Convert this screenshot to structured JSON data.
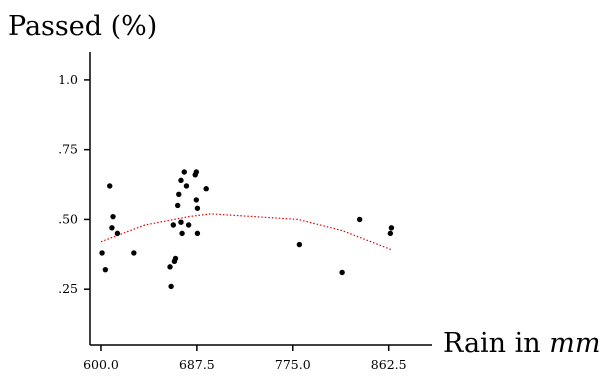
{
  "chart_data": {
    "type": "scatter",
    "ylabel": "Passed (%)",
    "xlabel": "Rain in",
    "xlabel_unit": "mm",
    "xlim": [
      590,
      902
    ],
    "ylim": [
      0.05,
      1.1
    ],
    "x_ticks": [
      {
        "value": 600.0,
        "label": "600.0"
      },
      {
        "value": 687.5,
        "label": "687.5"
      },
      {
        "value": 775.0,
        "label": "775.0"
      },
      {
        "value": 862.5,
        "label": "862.5"
      }
    ],
    "y_ticks": [
      {
        "value": 0.25,
        "label": ".25"
      },
      {
        "value": 0.5,
        "label": ".50"
      },
      {
        "value": 0.75,
        "label": ".75"
      },
      {
        "value": 1.0,
        "label": "1.0"
      }
    ],
    "grid": false,
    "legend": "none",
    "colors": {
      "points": "#000000",
      "trend": "#dd0000",
      "axes": "#000000"
    },
    "points": [
      {
        "x": 601,
        "y": 0.38
      },
      {
        "x": 604,
        "y": 0.32
      },
      {
        "x": 608,
        "y": 0.62
      },
      {
        "x": 610,
        "y": 0.47
      },
      {
        "x": 611,
        "y": 0.51
      },
      {
        "x": 615,
        "y": 0.45
      },
      {
        "x": 630,
        "y": 0.38
      },
      {
        "x": 663,
        "y": 0.33
      },
      {
        "x": 664,
        "y": 0.26
      },
      {
        "x": 666,
        "y": 0.48
      },
      {
        "x": 667,
        "y": 0.35
      },
      {
        "x": 668,
        "y": 0.36
      },
      {
        "x": 670,
        "y": 0.55
      },
      {
        "x": 671,
        "y": 0.59
      },
      {
        "x": 673,
        "y": 0.49
      },
      {
        "x": 673,
        "y": 0.64
      },
      {
        "x": 674,
        "y": 0.45
      },
      {
        "x": 676,
        "y": 0.67
      },
      {
        "x": 678,
        "y": 0.62
      },
      {
        "x": 680,
        "y": 0.48
      },
      {
        "x": 686,
        "y": 0.66
      },
      {
        "x": 687,
        "y": 0.67
      },
      {
        "x": 687,
        "y": 0.57
      },
      {
        "x": 688,
        "y": 0.45
      },
      {
        "x": 688,
        "y": 0.54
      },
      {
        "x": 696,
        "y": 0.61
      },
      {
        "x": 781,
        "y": 0.41
      },
      {
        "x": 820,
        "y": 0.31
      },
      {
        "x": 836,
        "y": 0.5
      },
      {
        "x": 864,
        "y": 0.45
      },
      {
        "x": 865,
        "y": 0.47
      }
    ],
    "trend": [
      {
        "x": 600,
        "y": 0.42
      },
      {
        "x": 640,
        "y": 0.48
      },
      {
        "x": 680,
        "y": 0.51
      },
      {
        "x": 700,
        "y": 0.52
      },
      {
        "x": 740,
        "y": 0.51
      },
      {
        "x": 780,
        "y": 0.5
      },
      {
        "x": 820,
        "y": 0.46
      },
      {
        "x": 866,
        "y": 0.39
      }
    ]
  }
}
